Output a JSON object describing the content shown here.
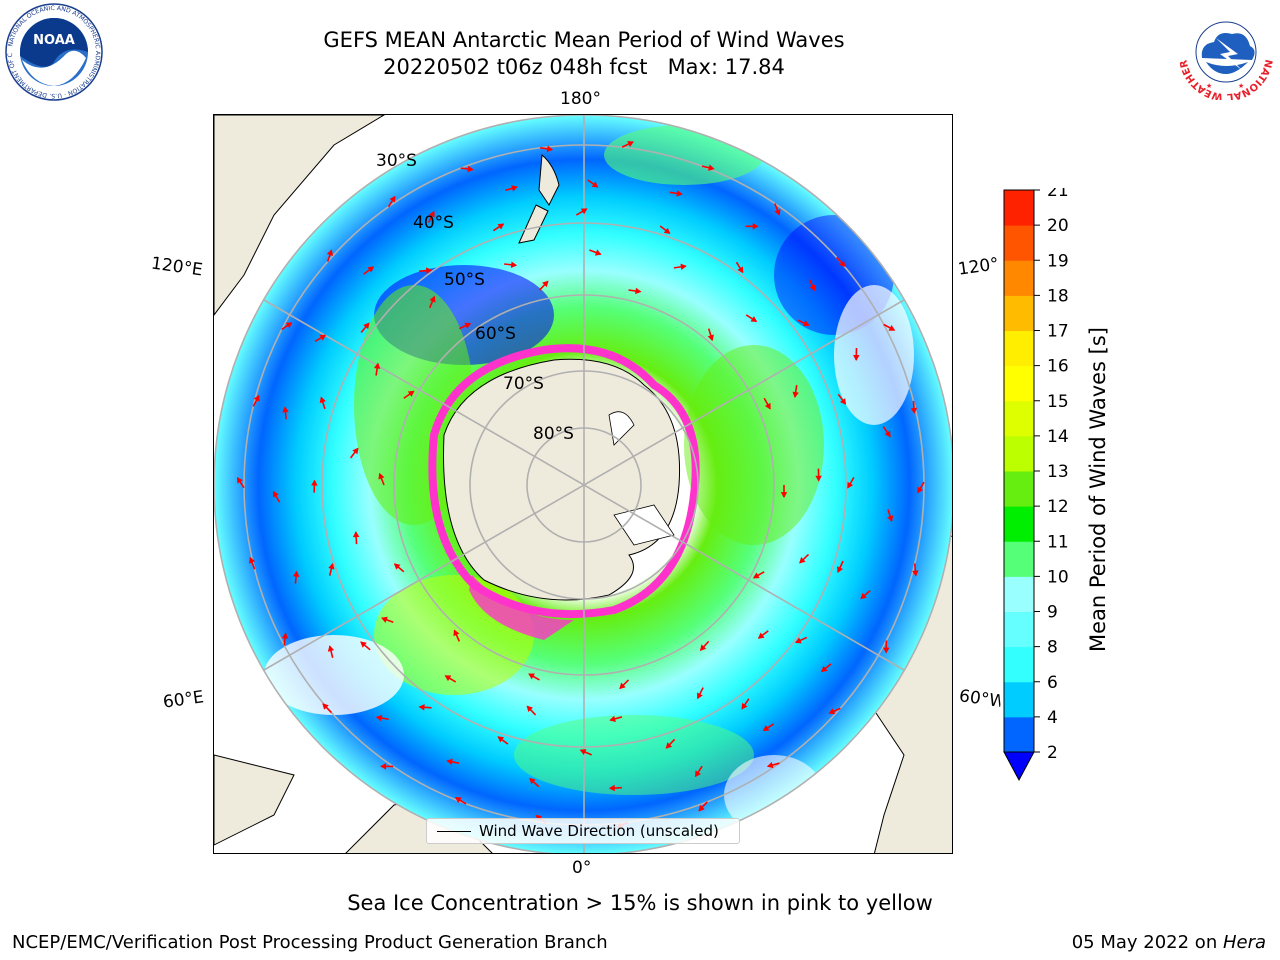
{
  "title": {
    "line1": "GEFS MEAN Antarctic Mean Period of Wind Waves",
    "line2": "20220502 t06z 048h fcst   Max: 17.84"
  },
  "logos": {
    "noaa": {
      "text": "NOAA",
      "ring_text": "NATIONAL OCEANIC AND ATMOSPHERIC ADMINISTRATION · U.S. DEPARTMENT OF COMMERCE"
    },
    "nws": {
      "ring_text": "NATIONAL WEATHER SERVICE"
    }
  },
  "map": {
    "lon_labels": {
      "top": "180°",
      "bottom": "0°",
      "left_upper": "120°E",
      "left_lower": "60°E",
      "right_upper": "120°W",
      "right_lower": "60°W"
    },
    "lat_labels": [
      "30°S",
      "40°S",
      "50°S",
      "60°S",
      "70°S",
      "80°S"
    ],
    "legend_text": "Wind Wave Direction (unscaled)",
    "land_color": "#efebdc",
    "grid_color": "#b0b0b0",
    "arrow_color": "#ff0000",
    "ice_colors": [
      "#ff33cc",
      "#ffff66"
    ]
  },
  "colorbar": {
    "title": "Mean Period of Wind Waves [s]",
    "ticks": [
      "2",
      "4",
      "6",
      "8",
      "9",
      "10",
      "11",
      "12",
      "13",
      "14",
      "15",
      "16",
      "17",
      "18",
      "19",
      "20",
      "21"
    ],
    "colors": [
      "#0066ff",
      "#00ccff",
      "#33ffff",
      "#66ffff",
      "#99ffff",
      "#55ff77",
      "#00ee00",
      "#66ee11",
      "#bbff00",
      "#ddff00",
      "#ffff00",
      "#ffee00",
      "#ffbb00",
      "#ff8800",
      "#ff5500",
      "#ff2200"
    ],
    "extend_color": "#0000ff"
  },
  "caption": "Sea Ice Concentration > 15% is shown in pink to yellow",
  "footer": {
    "left": "NCEP/EMC/Verification Post Processing Product Generation Branch",
    "right_date": "05 May 2022 on ",
    "right_host": "Hera"
  }
}
